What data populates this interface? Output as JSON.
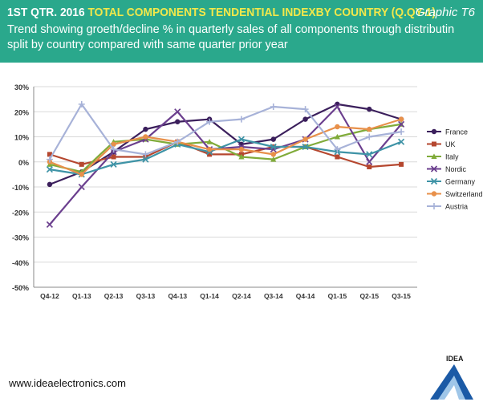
{
  "header": {
    "title_prefix": "1ST QTR. 2016",
    "title_accent": "TOTAL COMPONENTS TENDENTIAL INDEXBY COUNTRY (Q.QY-1)",
    "graphic_label": "Graphic T6",
    "subtitle": "Trend showing groeth/decline % in quarterly sales of all components through distributin split by country compared with same quarter prior year"
  },
  "footer": {
    "website": "www.ideaelectronics.com",
    "logo_text": "IDEA"
  },
  "chart_data": {
    "type": "line",
    "categories": [
      "Q4-12",
      "Q1-13",
      "Q2-13",
      "Q3-13",
      "Q4-13",
      "Q1-14",
      "Q2-14",
      "Q3-14",
      "Q4-14",
      "Q1-15",
      "Q2-15",
      "Q3-15"
    ],
    "ylim": [
      -50,
      30
    ],
    "yticks": [
      30,
      20,
      10,
      0,
      -10,
      -20,
      -30,
      -40,
      -50
    ],
    "ytick_labels": [
      "30%",
      "20%",
      "10%",
      "0%",
      "-10%",
      "-20%",
      "-30%",
      "-40%",
      "-50%"
    ],
    "grid": true,
    "legend_position": "right",
    "series": [
      {
        "name": "France",
        "color": "#3b1f5c",
        "marker": "circle",
        "values": [
          -9,
          -4,
          4,
          13,
          16,
          17,
          7,
          9,
          17,
          23,
          21,
          17
        ]
      },
      {
        "name": "UK",
        "color": "#b5472f",
        "marker": "square",
        "values": [
          3,
          -1,
          2,
          2,
          8,
          3,
          3,
          6,
          6,
          2,
          -2,
          -1
        ]
      },
      {
        "name": "Italy",
        "color": "#80ab3a",
        "marker": "triangle",
        "values": [
          -1,
          -4,
          8,
          9,
          7,
          8,
          2,
          1,
          6,
          10,
          13,
          15
        ]
      },
      {
        "name": "Nordic",
        "color": "#6b3f8e",
        "marker": "x",
        "values": [
          -25,
          -10,
          4,
          9,
          20,
          5,
          6,
          5,
          9,
          22,
          0,
          15
        ]
      },
      {
        "name": "Germany",
        "color": "#3e93a6",
        "marker": "x",
        "values": [
          -3,
          -5,
          -1,
          1,
          7,
          4,
          9,
          6,
          6,
          4,
          3,
          8
        ]
      },
      {
        "name": "Switzerland",
        "color": "#e8904a",
        "marker": "circle",
        "values": [
          0,
          -5,
          7,
          10,
          8,
          5,
          5,
          3,
          9,
          14,
          13,
          17
        ]
      },
      {
        "name": "Austria",
        "color": "#a7b2d8",
        "marker": "plus",
        "values": [
          1,
          23,
          5,
          3,
          8,
          16,
          17,
          22,
          21,
          5,
          10,
          12
        ]
      }
    ]
  }
}
